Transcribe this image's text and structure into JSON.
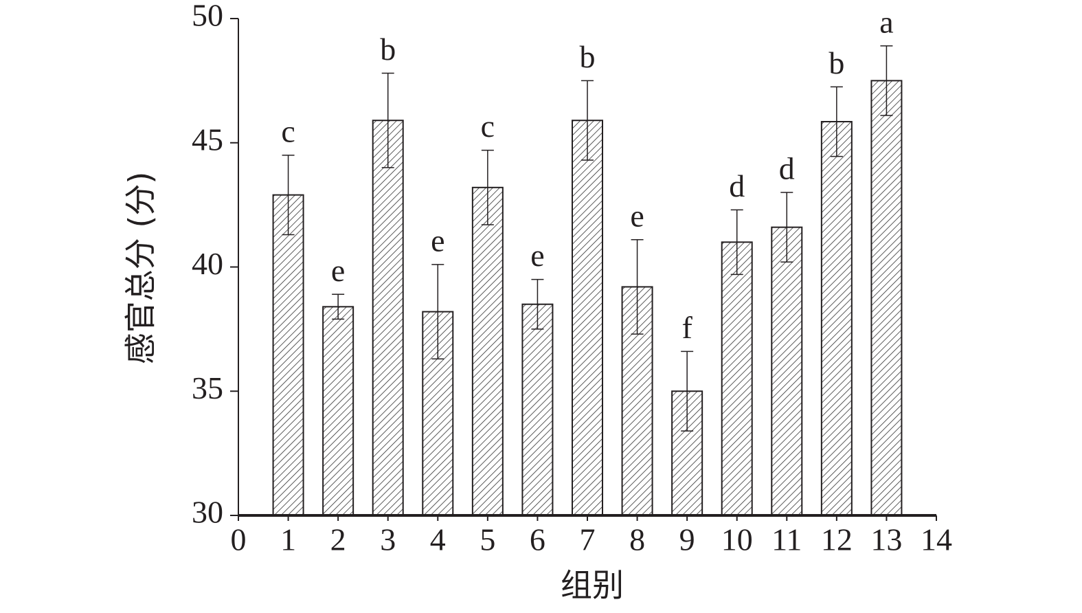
{
  "chart_data": {
    "type": "bar",
    "x_label": "组别",
    "y_label": "感官总分 (分)",
    "x": [
      1,
      2,
      3,
      4,
      5,
      6,
      7,
      8,
      9,
      10,
      11,
      12,
      13
    ],
    "values": [
      42.9,
      38.4,
      45.9,
      38.2,
      43.2,
      38.5,
      45.9,
      39.2,
      35.0,
      41.0,
      41.6,
      45.85,
      47.5
    ],
    "errors": [
      1.6,
      0.5,
      1.9,
      1.9,
      1.5,
      1.0,
      1.6,
      1.9,
      1.6,
      1.3,
      1.4,
      1.4,
      1.4
    ],
    "labels": [
      "c",
      "e",
      "b",
      "e",
      "c",
      "e",
      "b",
      "e",
      "f",
      "d",
      "d",
      "b",
      "a"
    ],
    "color": "#231f20",
    "xlim": [
      0,
      14
    ],
    "xticks": [
      0,
      1,
      2,
      3,
      4,
      5,
      6,
      7,
      8,
      9,
      10,
      11,
      12,
      13,
      14
    ],
    "ylim": [
      30,
      50
    ],
    "yticks": [
      30,
      35,
      40,
      45,
      50
    ]
  }
}
